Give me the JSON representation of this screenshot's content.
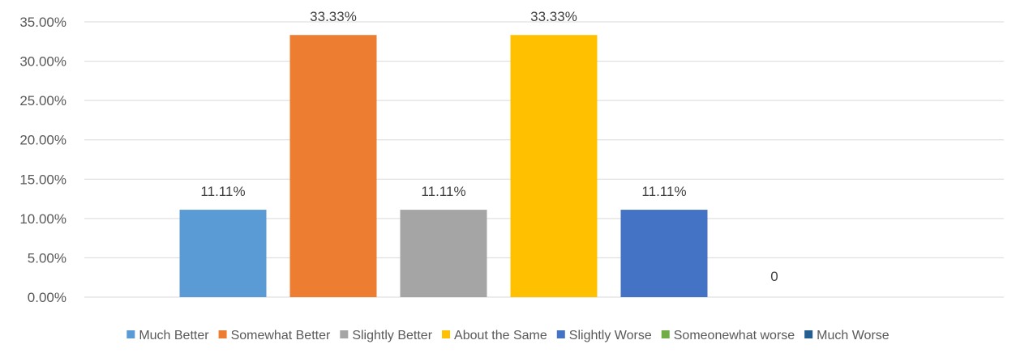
{
  "chart_data": {
    "type": "bar",
    "title": "",
    "xlabel": "",
    "ylabel": "",
    "ylim": [
      0,
      0.35
    ],
    "y_tick_step": 0.05,
    "y_tick_format": "percent-2dp",
    "grid": true,
    "legend_position": "bottom",
    "categories": [
      "Much Better",
      "Somewhat Better",
      "Slightly Better",
      "About the Same",
      "Slightly Worse",
      "Someonewhat worse",
      "Much Worse"
    ],
    "values": [
      0.1111,
      0.3333,
      0.1111,
      0.3333,
      0.1111,
      0,
      null
    ],
    "data_labels": [
      "11.11%",
      "33.33%",
      "11.11%",
      "33.33%",
      "11.11%",
      "0",
      ""
    ],
    "colors": [
      "#5B9BD5",
      "#ED7D31",
      "#A5A5A5",
      "#FFC000",
      "#4472C4",
      "#70AD47",
      "#255E91"
    ],
    "y_tick_labels": [
      "0.00%",
      "5.00%",
      "10.00%",
      "15.00%",
      "20.00%",
      "25.00%",
      "30.00%",
      "35.00%"
    ]
  }
}
